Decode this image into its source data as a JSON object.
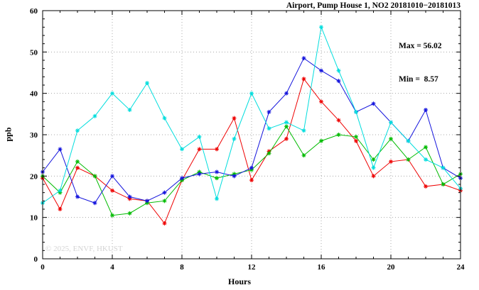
{
  "chart_data": {
    "type": "line",
    "title": "Airport, Pump House 1, NO2 20181010−20181013",
    "xlabel": "Hours",
    "ylabel": "ppb",
    "xlim": [
      0,
      24
    ],
    "ylim": [
      0,
      60
    ],
    "xticks": [
      0,
      4,
      8,
      12,
      16,
      20,
      24
    ],
    "yticks": [
      0,
      10,
      20,
      30,
      40,
      50,
      60
    ],
    "xminor": 1,
    "yminor": 2,
    "grid": true,
    "legend": "none",
    "annotations": [
      "Max = 56.02",
      "Min =  8.57"
    ],
    "max_value": 56.02,
    "min_value": 8.57,
    "watermark": "© 2025, ENVF, HKUST",
    "colors": {
      "grid": "#a8a8a8",
      "axis": "#000000",
      "background": "#ffffff"
    },
    "x": [
      0,
      1,
      2,
      3,
      4,
      5,
      6,
      7,
      8,
      9,
      10,
      11,
      12,
      13,
      14,
      15,
      16,
      17,
      18,
      19,
      20,
      21,
      22,
      23,
      24
    ],
    "series": [
      {
        "name": "red",
        "color": "#ee0000",
        "values": [
          19.5,
          12.0,
          22.0,
          20.0,
          16.5,
          14.5,
          14.0,
          8.57,
          19.0,
          26.5,
          26.5,
          34.0,
          19.0,
          26.0,
          29.0,
          43.5,
          38.0,
          33.5,
          28.5,
          20.0,
          23.5,
          24.0,
          17.5,
          18.0,
          16.5
        ]
      },
      {
        "name": "green",
        "color": "#00bb00",
        "values": [
          20.0,
          16.0,
          23.5,
          20.0,
          10.5,
          11.0,
          13.5,
          14.0,
          19.0,
          21.0,
          19.5,
          20.5,
          21.5,
          25.5,
          32.0,
          25.0,
          28.5,
          30.0,
          29.5,
          24.0,
          29.0,
          24.0,
          27.0,
          18.0,
          20.5
        ]
      },
      {
        "name": "blue",
        "color": "#1515dd",
        "values": [
          21.0,
          26.5,
          15.0,
          13.5,
          20.0,
          15.0,
          14.0,
          16.0,
          19.5,
          20.5,
          21.0,
          20.0,
          22.0,
          35.5,
          40.0,
          48.5,
          45.5,
          43.0,
          35.5,
          37.5,
          33.0,
          28.5,
          36.0,
          22.0,
          19.5
        ]
      },
      {
        "name": "cyan",
        "color": "#00dddd",
        "values": [
          13.5,
          16.5,
          31.0,
          34.5,
          40.0,
          36.0,
          42.5,
          34.0,
          26.5,
          29.5,
          14.5,
          29.0,
          40.0,
          31.5,
          33.0,
          31.0,
          56.02,
          45.5,
          35.5,
          22.0,
          33.0,
          28.5,
          24.0,
          22.0,
          17.0
        ]
      }
    ]
  }
}
